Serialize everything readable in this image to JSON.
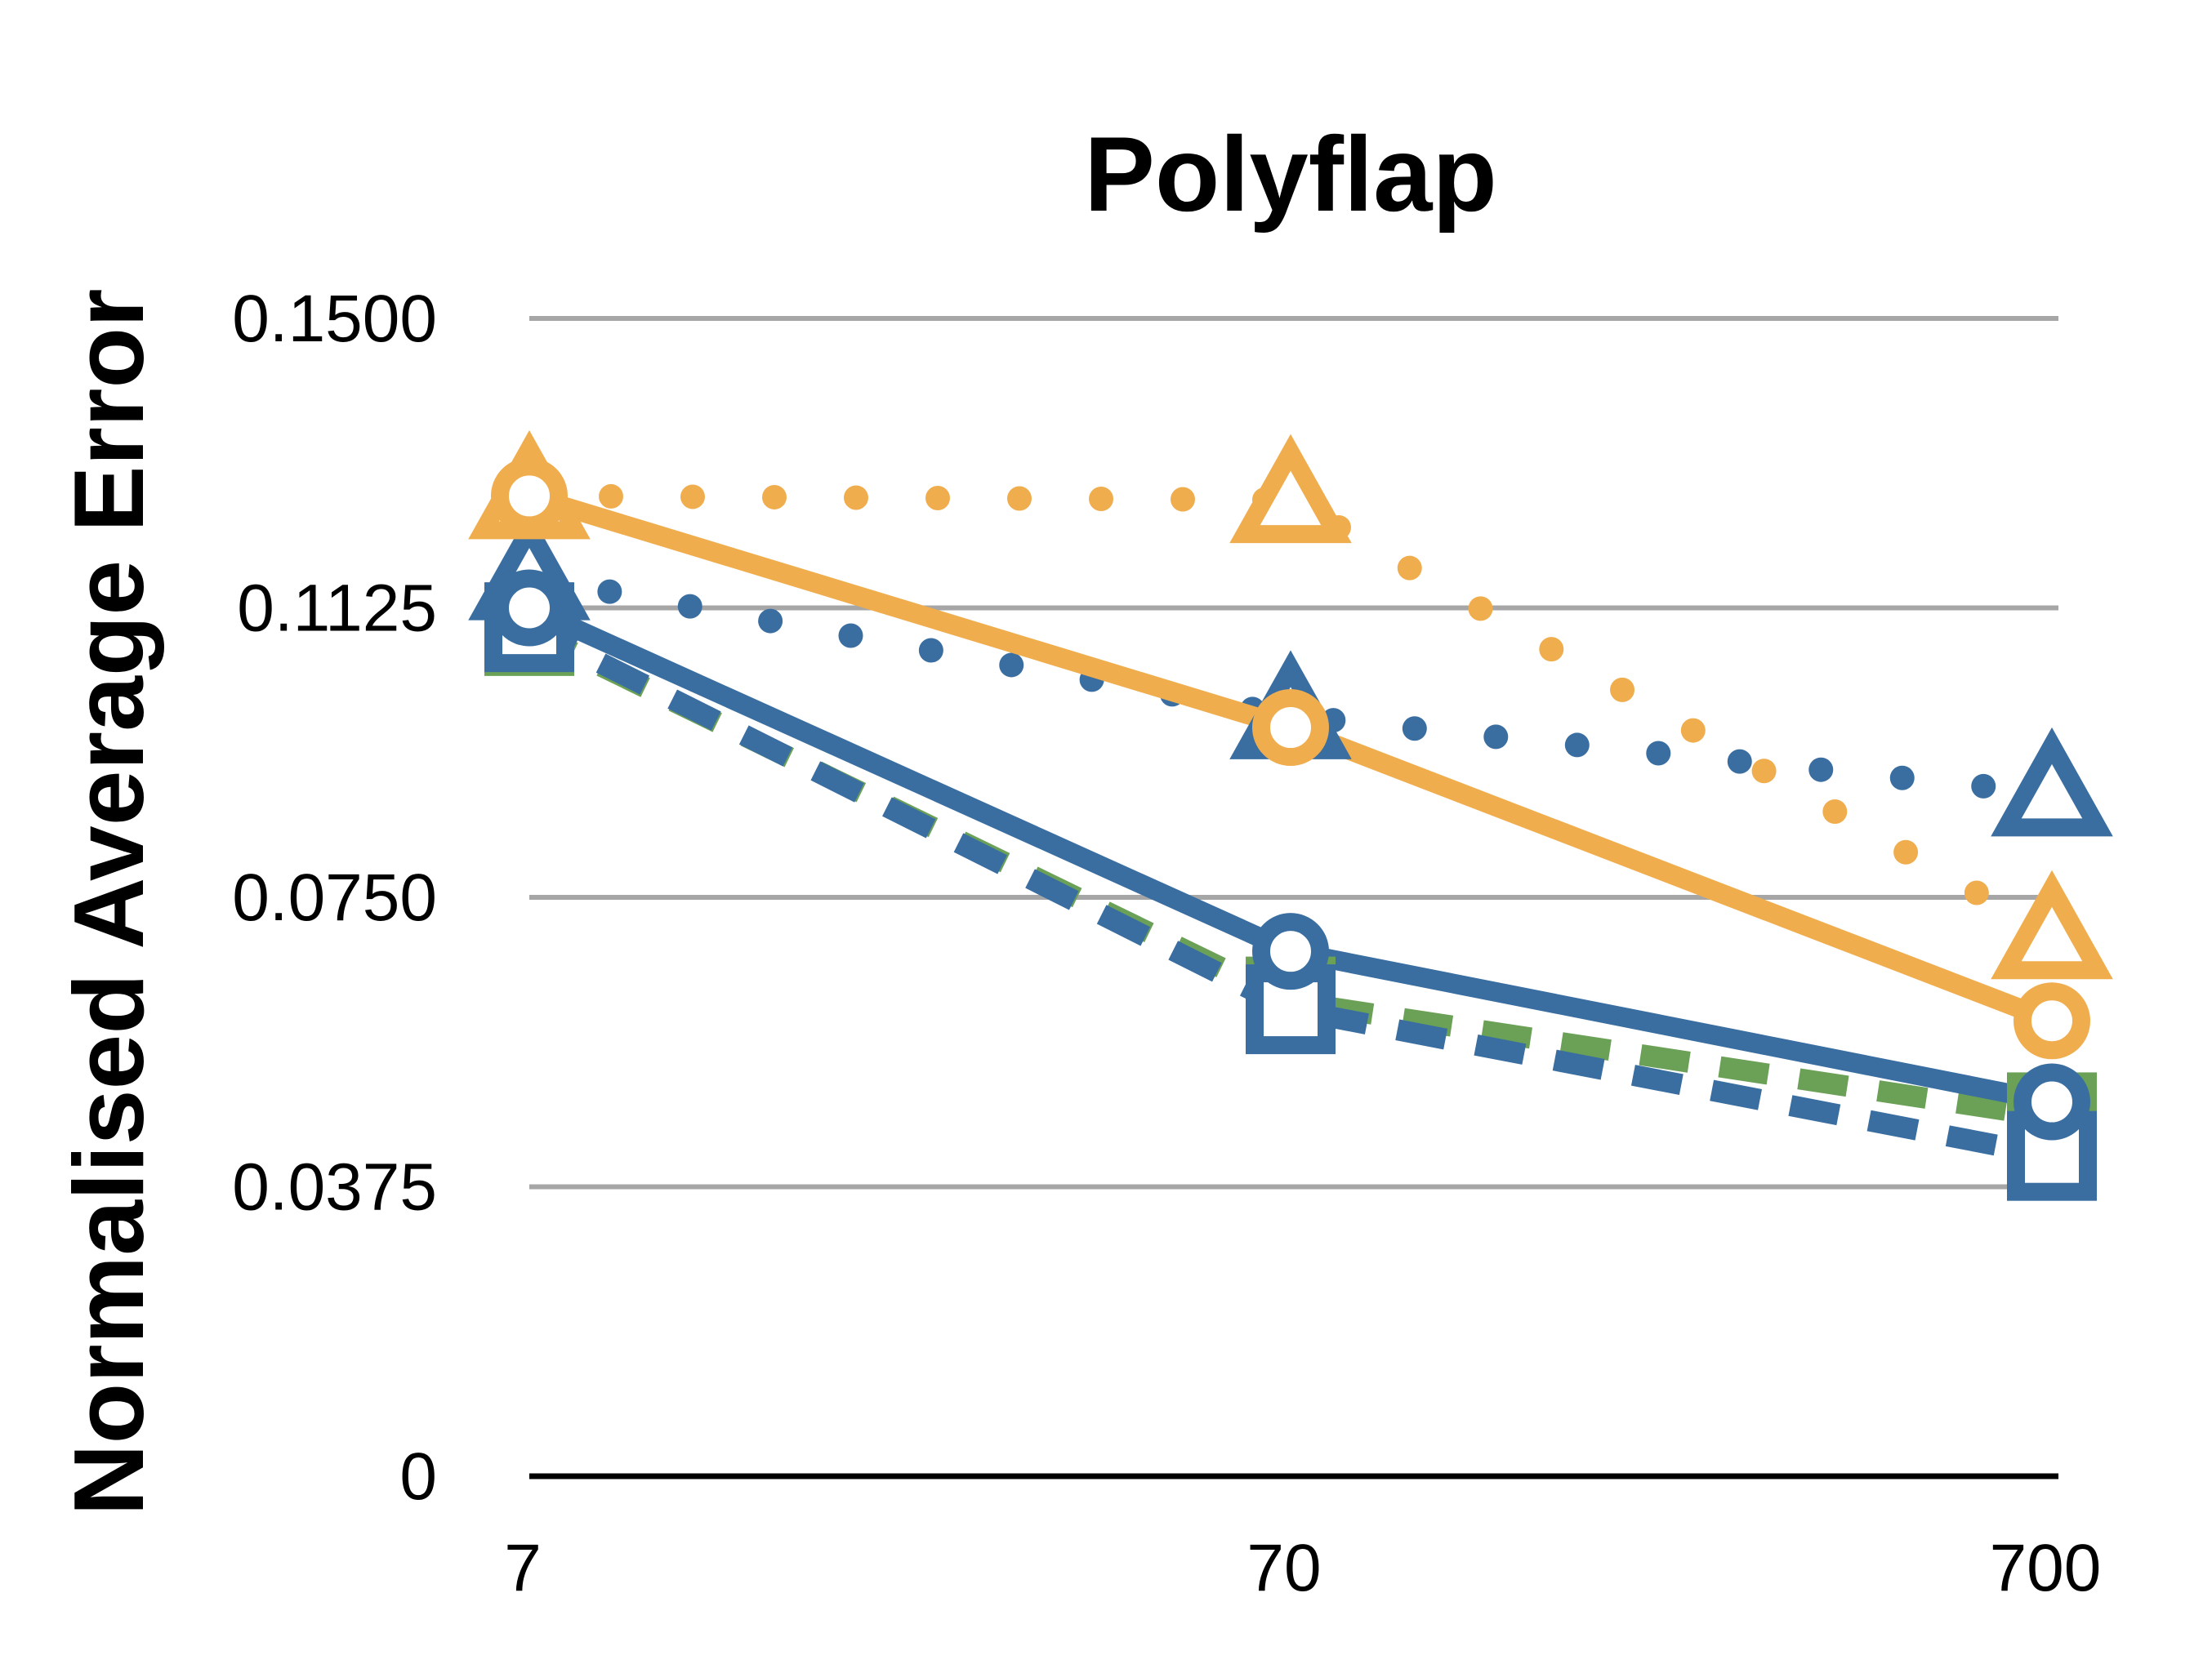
{
  "chart_data": {
    "type": "line",
    "title": "Polyflap",
    "xlabel": "",
    "ylabel": "Normalised Average Error",
    "x_scale": "log",
    "categories": [
      "7",
      "70",
      "700"
    ],
    "x": [
      7,
      70,
      700
    ],
    "ylim": [
      0,
      0.15
    ],
    "yticks": [
      "0",
      "0.0375",
      "0.0750",
      "0.1125",
      "0.1500"
    ],
    "ytick_values": [
      0,
      0.0375,
      0.075,
      0.1125,
      0.15
    ],
    "grid": true,
    "legend": "none",
    "colors": {
      "orange": "#F0AD4E",
      "blue": "#3A6EA1",
      "green": "#6AA156",
      "grid": "#A6A6A6",
      "axis": "#000000"
    },
    "series": [
      {
        "values": [
          0.1095,
          0.0615,
          0.0465
        ],
        "color": "#6AA156",
        "line": "dashed",
        "marker": "square"
      },
      {
        "values": [
          0.11,
          0.0605,
          0.0415
        ],
        "color": "#3A6EA1",
        "line": "dashed",
        "marker": "square"
      },
      {
        "values": [
          0.1165,
          0.0985,
          0.0885
        ],
        "color": "#3A6EA1",
        "line": "dotted",
        "marker": "triangle"
      },
      {
        "values": [
          0.127,
          0.1265,
          0.07
        ],
        "color": "#F0AD4E",
        "line": "dotted",
        "marker": "triangle"
      },
      {
        "values": [
          0.1125,
          0.068,
          0.0485
        ],
        "color": "#3A6EA1",
        "line": "solid",
        "marker": "circle"
      },
      {
        "values": [
          0.127,
          0.097,
          0.059
        ],
        "color": "#F0AD4E",
        "line": "solid",
        "marker": "circle"
      }
    ]
  }
}
